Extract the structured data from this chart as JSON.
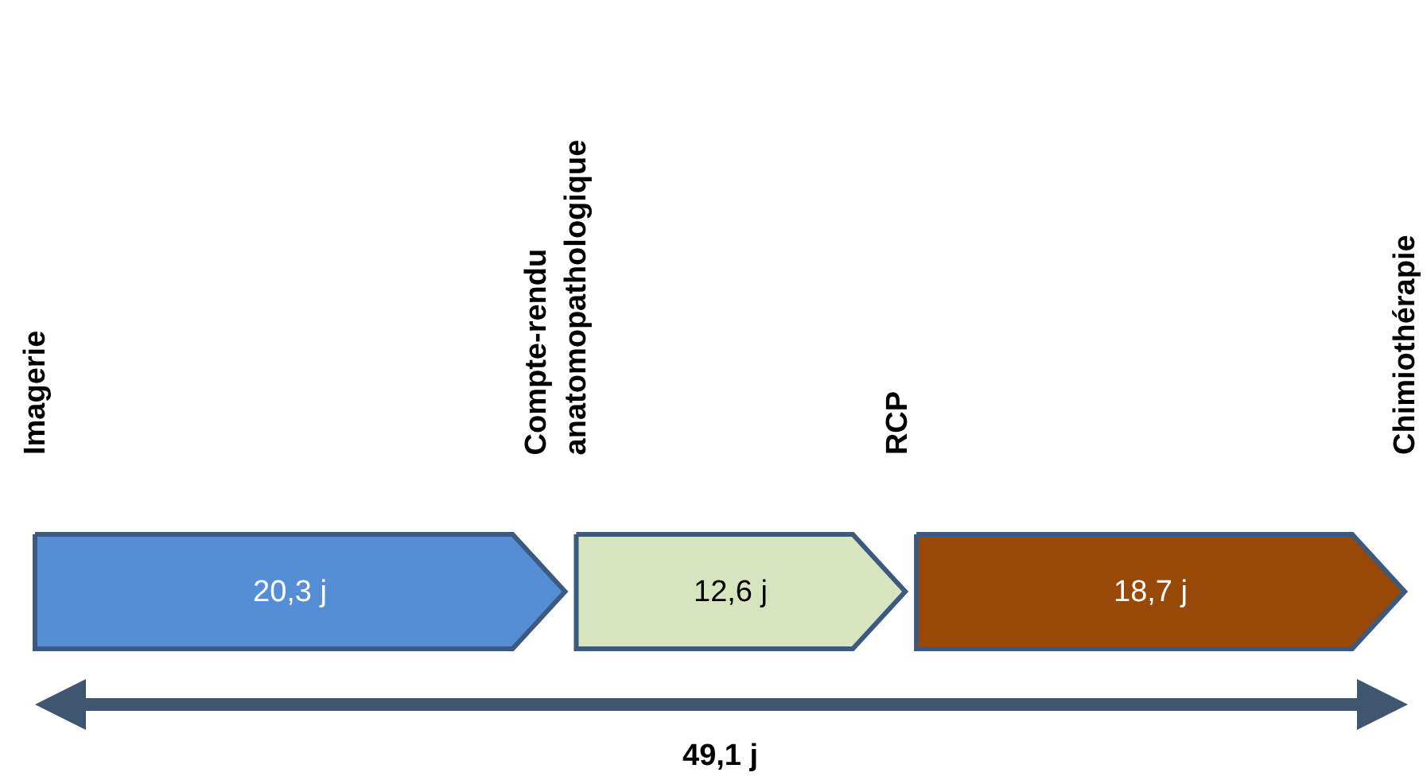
{
  "chart_data": {
    "type": "other",
    "values": [
      20.3,
      12.6,
      18.7
    ],
    "value_labels": [
      "20,3 j",
      "12,6 j",
      "18,7 j"
    ],
    "colors": [
      "#558ed5",
      "#d7e4bd",
      "#984807"
    ],
    "annotations": [
      "Imagerie",
      "Compte-rendu\nanatomopathologique",
      "RCP",
      "Chimiothérapie",
      "49,1 j"
    ]
  }
}
